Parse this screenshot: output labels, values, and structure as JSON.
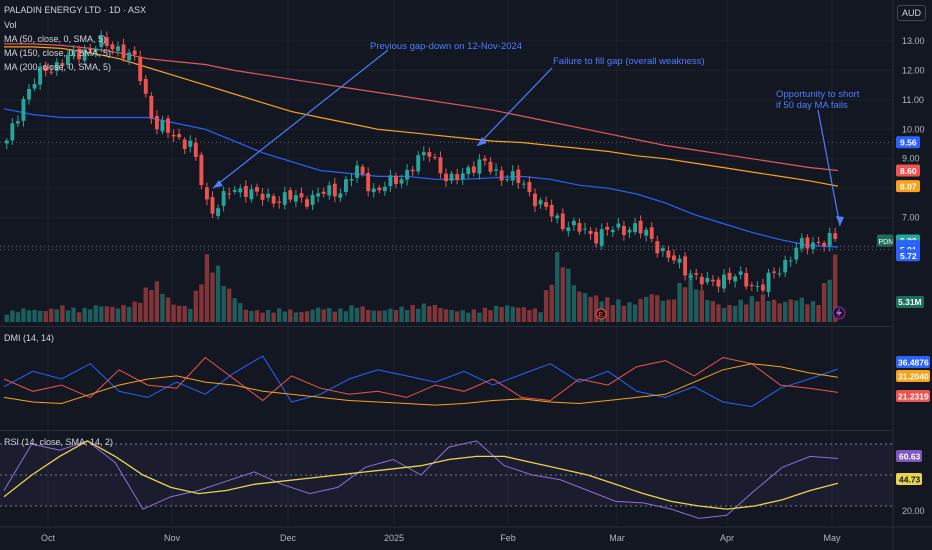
{
  "header": {
    "title": "PALADIN ENERGY LTD · 1D · ASX",
    "vol_label": "Vol",
    "ma_50": "MA (50, close, 0, SMA, 5)",
    "ma_150": "MA (150, close, 0, SMA, 5)",
    "ma_200": "MA (200, close, 0, SMA, 5)",
    "currency": "AUD"
  },
  "colors": {
    "background": "#131722",
    "up": "#26a69a",
    "down": "#ef5350",
    "ma50": "#2962ff",
    "ma150": "#f7a21b",
    "ma200": "#e0595a",
    "annotation": "#4f7dff",
    "rsi": "#8e6fd6",
    "rsi_ma": "#e8d44d"
  },
  "annotations": [
    {
      "id": "gap-note",
      "text": "Previous gap-down on 12-Nov-2024"
    },
    {
      "id": "fail-note",
      "text": "Failure to fill gap (overall weakness)"
    },
    {
      "id": "short-note-1",
      "text": "Opportunity to short"
    },
    {
      "id": "short-note-2",
      "text": "if 50 day MA fails"
    }
  ],
  "ticker_badge": "PDN",
  "volume_badge": "5.31M",
  "dmi_label": "DMI (14, 14)",
  "rsi_label": "RSI (14, close, SMA, 14, 2)",
  "chart_data": [
    {
      "type": "candlestick",
      "title": "PALADIN ENERGY LTD · 1D · ASX",
      "x_ticks": [
        "Oct",
        "Nov",
        "Dec",
        "2025",
        "Feb",
        "Mar",
        "Apr",
        "May"
      ],
      "y_ticks": [
        "13.00",
        "12.00",
        "11.00",
        "10.00",
        "9.00",
        "8.00",
        "7.00",
        "6.00"
      ],
      "ylim": [
        4.4,
        13.4
      ],
      "price_labels": [
        {
          "value": 9.56,
          "color": "#2962ff"
        },
        {
          "value": 8.6,
          "color": "#ef5350"
        },
        {
          "value": 8.07,
          "color": "#f7a21b"
        },
        {
          "value": 6.22,
          "color": "#26a69a"
        },
        {
          "value": 6.03,
          "color": "#2962ff"
        },
        {
          "value": 5.91,
          "color": "#2962ff"
        },
        {
          "value": 5.72,
          "color": "#2962ff"
        }
      ],
      "ma_series": [
        {
          "name": "MA 50",
          "values": [
            10.7,
            10.5,
            10.4,
            10.4,
            10.4,
            10.4,
            10.2,
            10.0,
            9.6,
            9.2,
            8.9,
            8.6,
            8.5,
            8.4,
            8.4,
            8.3,
            8.3,
            8.35,
            8.4,
            8.3,
            8.1,
            8.0,
            7.8,
            7.5,
            7.1,
            6.8,
            6.5,
            6.25,
            6.05,
            6.0
          ]
        },
        {
          "name": "MA 150",
          "values": [
            12.8,
            12.8,
            12.75,
            12.6,
            12.4,
            12.1,
            11.8,
            11.5,
            11.2,
            10.9,
            10.6,
            10.4,
            10.2,
            10.0,
            9.9,
            9.8,
            9.7,
            9.6,
            9.55,
            9.45,
            9.35,
            9.25,
            9.1,
            9.0,
            8.85,
            8.7,
            8.55,
            8.4,
            8.25,
            8.07
          ]
        },
        {
          "name": "MA 200",
          "values": [
            12.9,
            12.9,
            12.85,
            12.75,
            12.6,
            12.4,
            12.3,
            12.2,
            12.0,
            11.85,
            11.7,
            11.55,
            11.4,
            11.25,
            11.1,
            10.95,
            10.8,
            10.65,
            10.45,
            10.25,
            10.05,
            9.85,
            9.65,
            9.45,
            9.3,
            9.15,
            9.0,
            8.85,
            8.7,
            8.6
          ]
        }
      ],
      "close_path": [
        9.5,
        11.2,
        12.0,
        12.3,
        12.6,
        12.9,
        12.8,
        12.3,
        10.2,
        9.8,
        9.5,
        7.2,
        7.8,
        8.0,
        7.6,
        7.7,
        7.6,
        7.8,
        7.9,
        8.6,
        7.9,
        8.2,
        8.7,
        9.3,
        8.1,
        8.7,
        8.8,
        8.4,
        8.2,
        7.4,
        6.9,
        6.6,
        6.4,
        6.6,
        6.7,
        6.3,
        5.6,
        5.2,
        4.7,
        5.0,
        4.9,
        4.6,
        5.3,
        6.0,
        6.2,
        6.22
      ]
    },
    {
      "type": "bar",
      "title": "Vol",
      "values": [
        0.8,
        1.1,
        0.9,
        1.3,
        1.0,
        1.4,
        1.2,
        1.6,
        3.5,
        1.5,
        1.2,
        5.8,
        2.8,
        1.0,
        0.9,
        1.1,
        0.8,
        1.2,
        1.0,
        1.4,
        0.9,
        1.1,
        1.3,
        1.5,
        1.0,
        0.9,
        1.1,
        1.4,
        1.2,
        1.0,
        5.9,
        2.6,
        2.1,
        1.8,
        1.5,
        2.4,
        1.7,
        4.1,
        2.0,
        1.2,
        1.8,
        2.2,
        1.6,
        2.0,
        1.5,
        5.31
      ]
    },
    {
      "type": "line",
      "title": "DMI (14, 14)",
      "y_ticks": [],
      "value_labels": [
        "36.4876",
        "31.2040",
        "21.2319"
      ],
      "series": [
        {
          "name": "+DI",
          "color": "#2962ff",
          "values": [
            25,
            35,
            30,
            40,
            22,
            18,
            28,
            20,
            34,
            45,
            15,
            20,
            30,
            36,
            32,
            28,
            35,
            26,
            33,
            40,
            28,
            35,
            22,
            18,
            25,
            15,
            12,
            24,
            30,
            36.49
          ]
        },
        {
          "name": "-DI",
          "color": "#ef5350",
          "values": [
            30,
            22,
            26,
            18,
            36,
            26,
            24,
            44,
            30,
            16,
            32,
            24,
            20,
            22,
            18,
            26,
            22,
            30,
            18,
            16,
            30,
            26,
            38,
            42,
            32,
            44,
            40,
            26,
            24,
            21.23
          ]
        },
        {
          "name": "ADX",
          "color": "#f7a21b",
          "values": [
            18,
            15,
            14,
            20,
            26,
            30,
            32,
            28,
            26,
            22,
            20,
            18,
            16,
            15,
            14,
            13,
            14,
            16,
            17,
            15,
            14,
            16,
            18,
            20,
            28,
            36,
            40,
            38,
            34,
            31.2
          ]
        }
      ]
    },
    {
      "type": "line",
      "title": "RSI (14, close, SMA, 14, 2)",
      "y_ticks": [
        "20.00"
      ],
      "value_labels": [
        "60.63",
        "44.73"
      ],
      "ylim": [
        15,
        85
      ],
      "series": [
        {
          "name": "RSI",
          "color": "#8e6fd6",
          "values": [
            40,
            70,
            66,
            72,
            58,
            28,
            36,
            40,
            46,
            52,
            44,
            38,
            42,
            55,
            60,
            50,
            68,
            72,
            56,
            50,
            47,
            40,
            33,
            32,
            28,
            22,
            24,
            40,
            55,
            62,
            60.63
          ]
        },
        {
          "name": "RSI MA",
          "color": "#e8d44d",
          "values": [
            36,
            50,
            62,
            72,
            62,
            50,
            42,
            38,
            40,
            44,
            46,
            48,
            50,
            52,
            54,
            56,
            60,
            62,
            62,
            58,
            54,
            50,
            44,
            38,
            33,
            30,
            28,
            30,
            34,
            40,
            44.73
          ]
        }
      ]
    }
  ]
}
